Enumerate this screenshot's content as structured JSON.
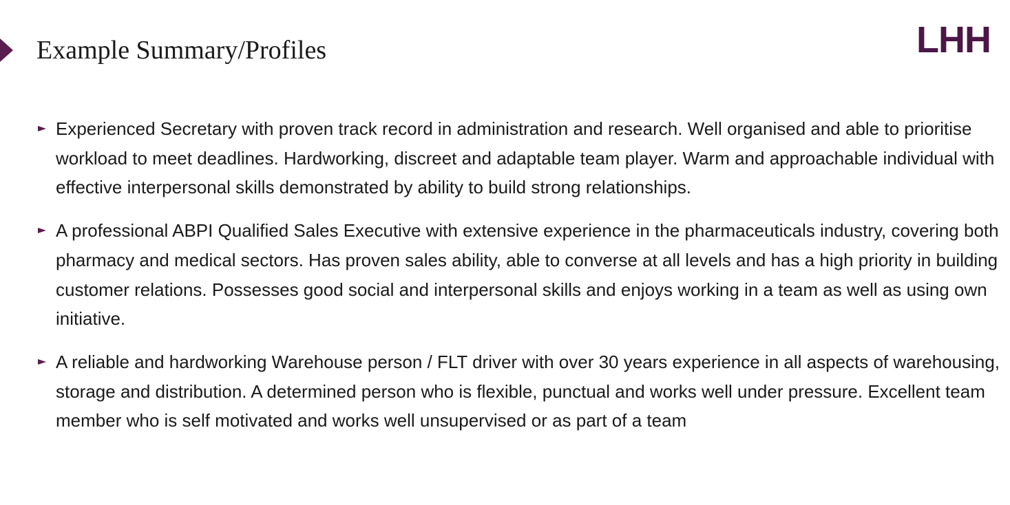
{
  "slide": {
    "title": "Example Summary/Profiles",
    "logo_text": "LHH",
    "accent_color": "#5a1d4f",
    "logo_color": "#4b1747",
    "bullets": [
      {
        "icon": "triangle-right-icon",
        "text": "Experienced Secretary with proven track record in administration and research. Well organised and able to prioritise workload to meet deadlines. Hardworking, discreet and adaptable team player. Warm and approachable individual with effective interpersonal skills demonstrated by ability to build strong relationships."
      },
      {
        "icon": "triangle-right-icon",
        "text": "A professional ABPI Qualified Sales Executive with extensive experience in the pharmaceuticals industry, covering both pharmacy and medical sectors. Has proven sales ability, able to converse at all levels and has a high priority in building customer relations. Possesses good social and interpersonal skills and enjoys working in a team as well as using own initiative."
      },
      {
        "icon": "triangle-right-icon",
        "text": "A reliable and hardworking Warehouse person / FLT driver with over 30 years experience in all aspects of warehousing, storage and distribution. A determined person who is flexible, punctual and works well under pressure. Excellent team member who is self motivated and works well unsupervised or as part of a team"
      }
    ]
  }
}
